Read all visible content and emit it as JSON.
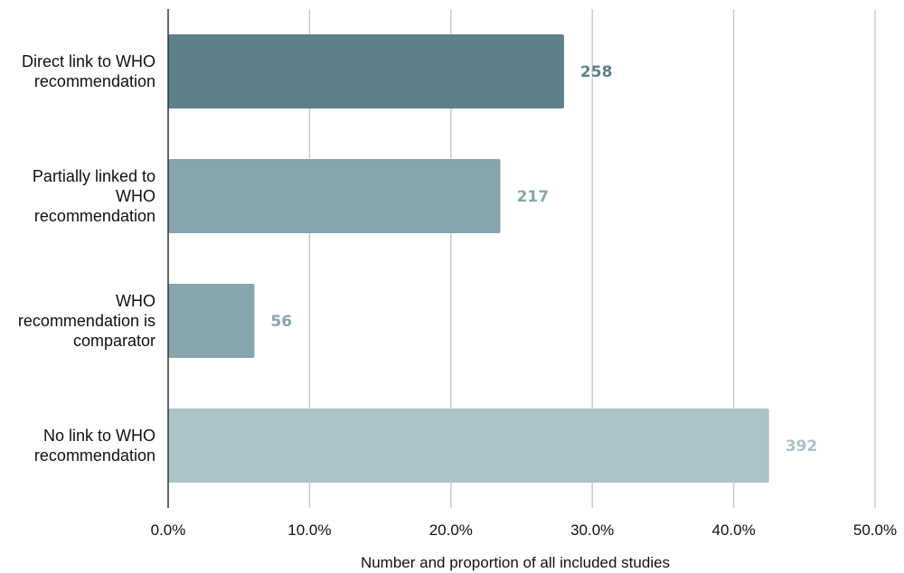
{
  "chart_data": {
    "type": "bar",
    "orientation": "horizontal",
    "categories": [
      [
        "Direct link to WHO",
        "recommendation"
      ],
      [
        "Partially linked to",
        "WHO",
        "recommendation"
      ],
      [
        "WHO",
        "recommendation is",
        "comparator"
      ],
      [
        "No link to WHO",
        "recommendation"
      ]
    ],
    "values": [
      28.0,
      23.5,
      6.1,
      42.5
    ],
    "data_labels": [
      "258",
      "217",
      "56",
      "392"
    ],
    "colors": [
      "#5e808b",
      "#86a5ad",
      "#86a5ad",
      "#abc3c9"
    ],
    "label_colors": [
      "#5e808b",
      "#86a5ad",
      "#86a5ad",
      "#abc3c9"
    ],
    "xlim": [
      0,
      50
    ],
    "xticks": [
      0,
      10,
      20,
      30,
      40,
      50
    ],
    "xtick_labels": [
      "0.0%",
      "10.0%",
      "20.0%",
      "30.0%",
      "40.0%",
      "50.0%"
    ],
    "xlabel": "Number and proportion of all included studies",
    "grid": true
  }
}
